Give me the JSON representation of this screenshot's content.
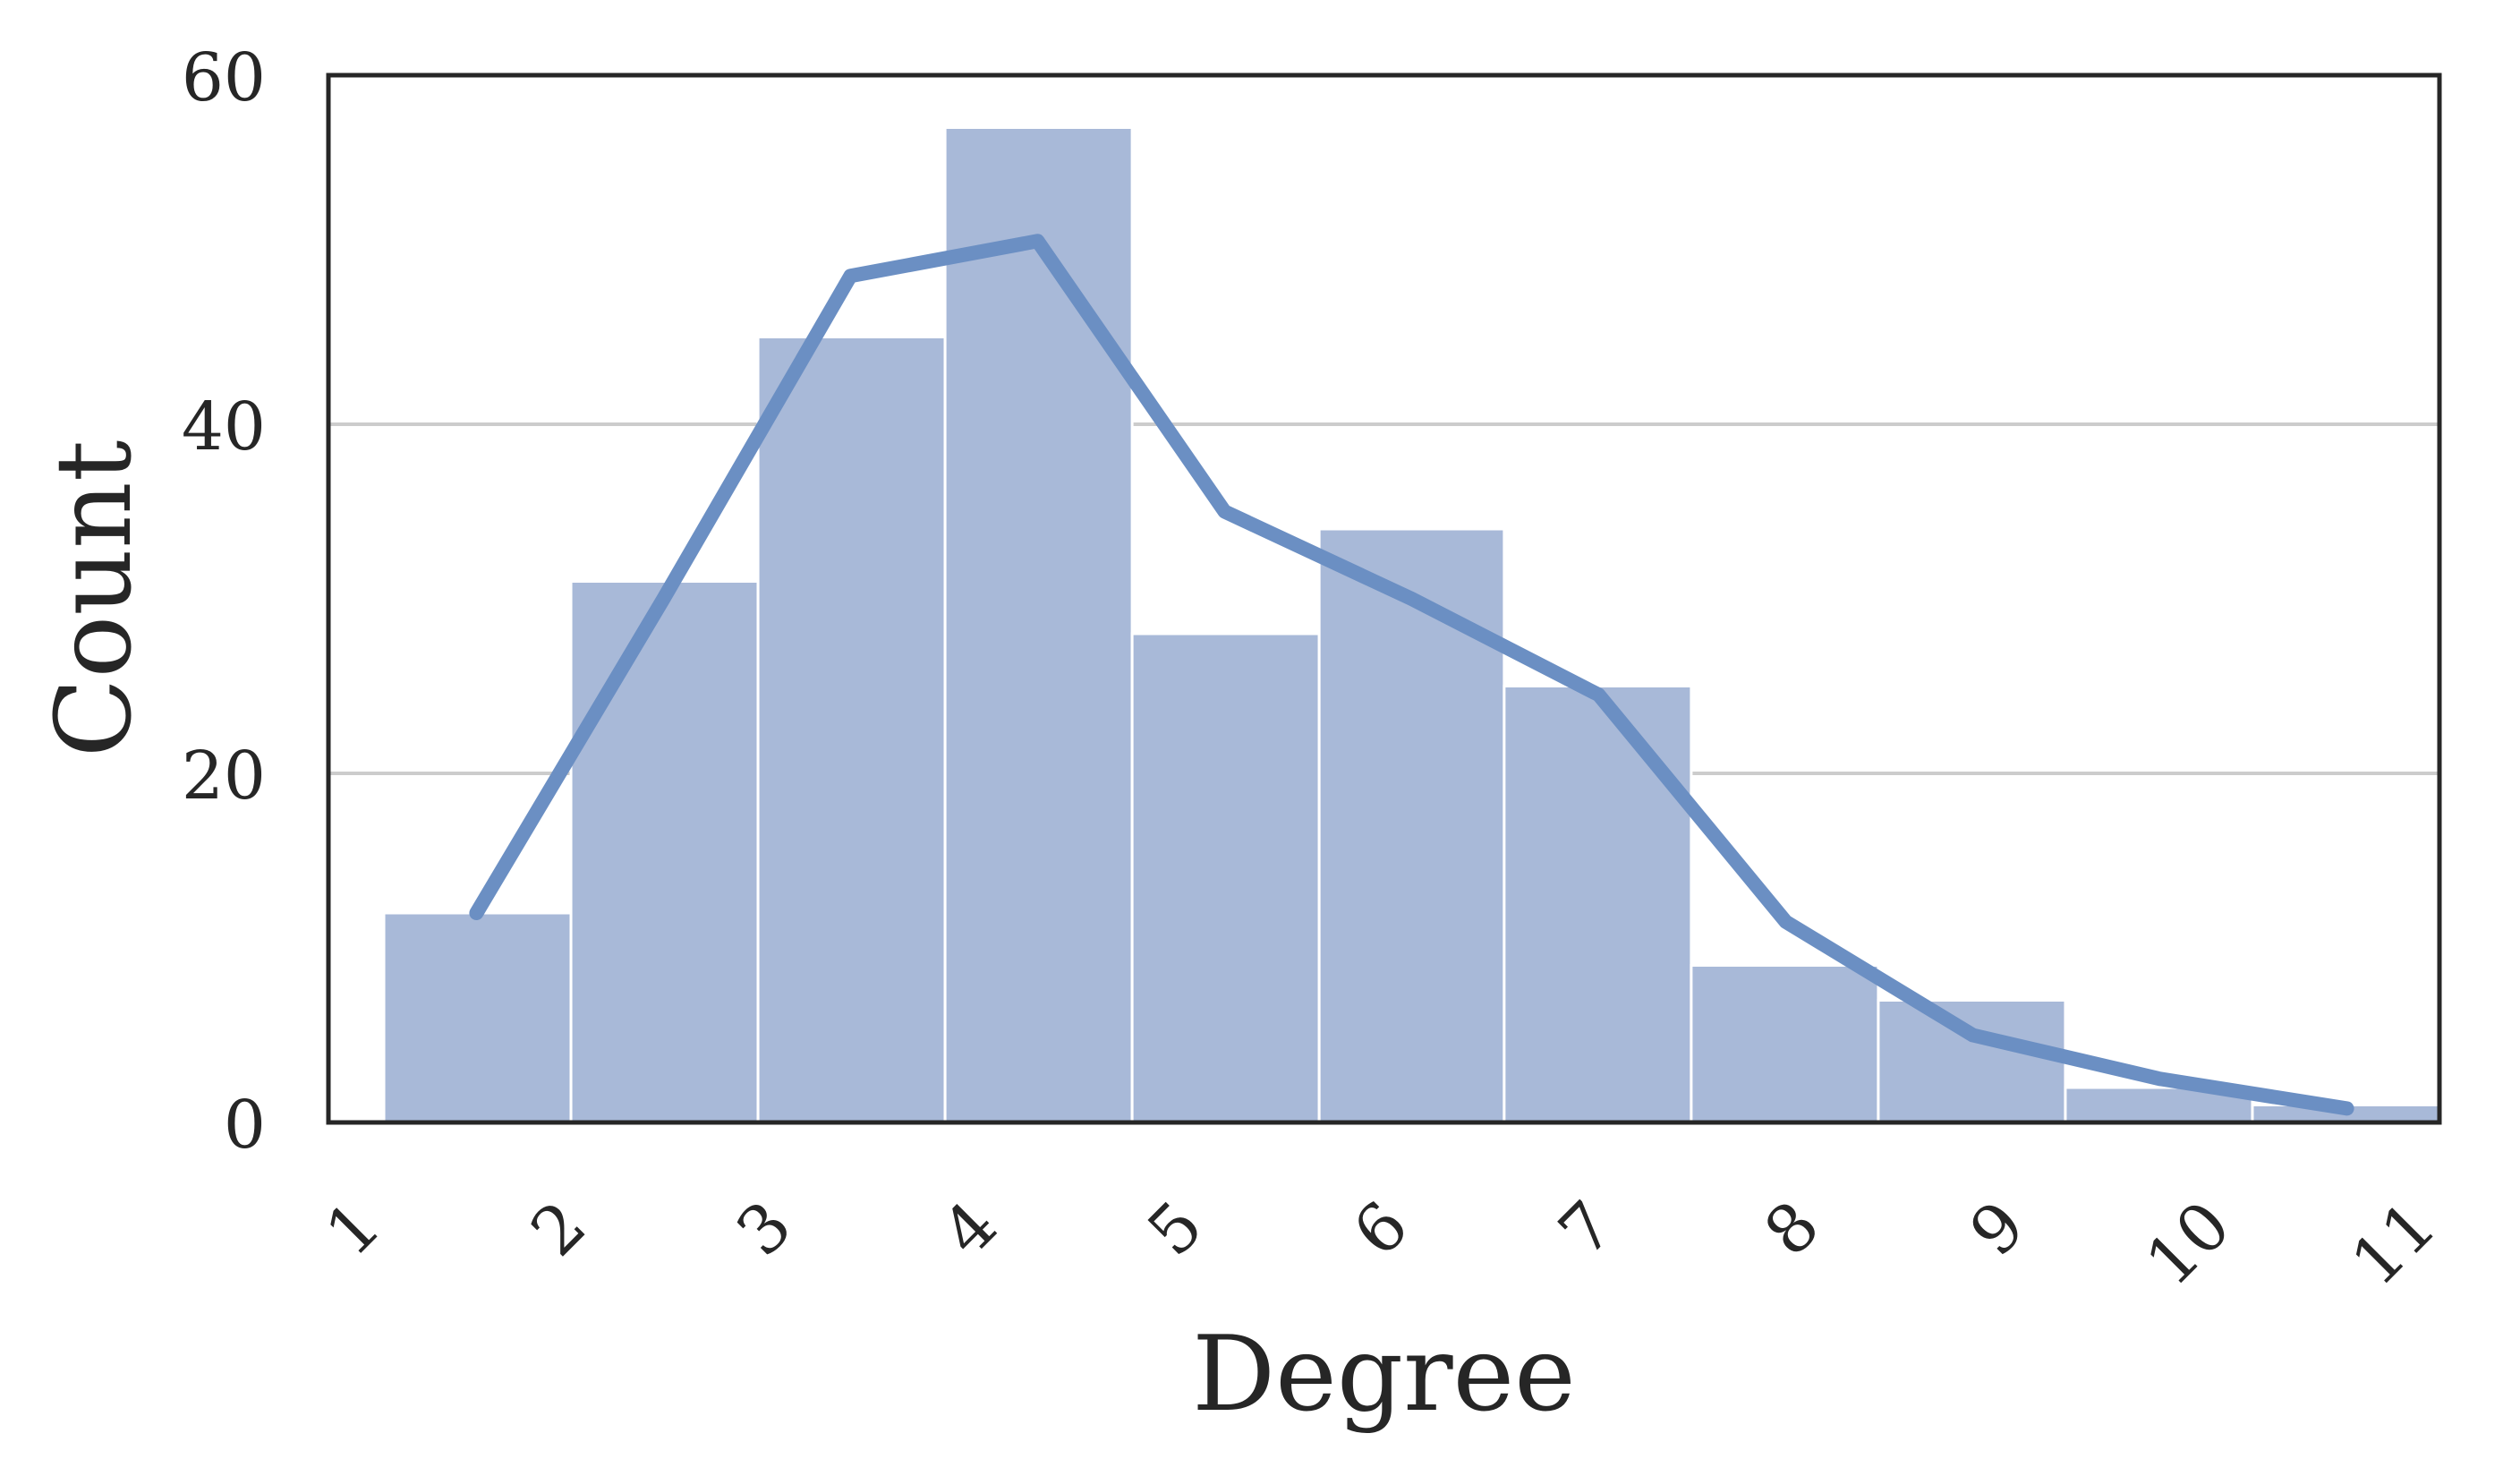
{
  "chart_data": {
    "type": "bar",
    "xlabel": "Degree",
    "ylabel": "Count",
    "categories": [
      "1",
      "2",
      "3",
      "4",
      "5",
      "6",
      "7",
      "8",
      "9",
      "10",
      "11"
    ],
    "bins": [
      {
        "x0": 1.0,
        "x1": 1.91,
        "value": 12
      },
      {
        "x0": 1.91,
        "x1": 2.82,
        "value": 31
      },
      {
        "x0": 2.82,
        "x1": 3.73,
        "value": 45
      },
      {
        "x0": 3.73,
        "x1": 4.64,
        "value": 57
      },
      {
        "x0": 4.64,
        "x1": 5.55,
        "value": 28
      },
      {
        "x0": 5.55,
        "x1": 6.45,
        "value": 34
      },
      {
        "x0": 6.45,
        "x1": 7.36,
        "value": 25
      },
      {
        "x0": 7.36,
        "x1": 8.27,
        "value": 9
      },
      {
        "x0": 8.27,
        "x1": 9.18,
        "value": 7
      },
      {
        "x0": 9.18,
        "x1": 10.09,
        "value": 2
      },
      {
        "x0": 10.09,
        "x1": 11.0,
        "value": 1
      }
    ],
    "kde": {
      "x": [
        1.45,
        2.36,
        3.27,
        4.18,
        5.09,
        6.0,
        6.91,
        7.82,
        8.73,
        9.64,
        10.55
      ],
      "y": [
        12.0,
        30.0,
        48.5,
        50.5,
        35.0,
        30.0,
        24.5,
        11.5,
        5.0,
        2.5,
        0.8
      ]
    },
    "xlim": [
      0.73,
      11.0
    ],
    "ylim": [
      0,
      60
    ],
    "yticks": [
      0,
      20,
      40,
      60
    ],
    "xticks": [
      1,
      2,
      3,
      4,
      5,
      6,
      7,
      8,
      9,
      10,
      11
    ],
    "grid": "horizontal",
    "colors": {
      "bar": "#a8b9d8",
      "bar_edge": "#ffffff",
      "line": "#6b8fc3",
      "grid": "#cccccc",
      "frame": "#262626"
    }
  }
}
